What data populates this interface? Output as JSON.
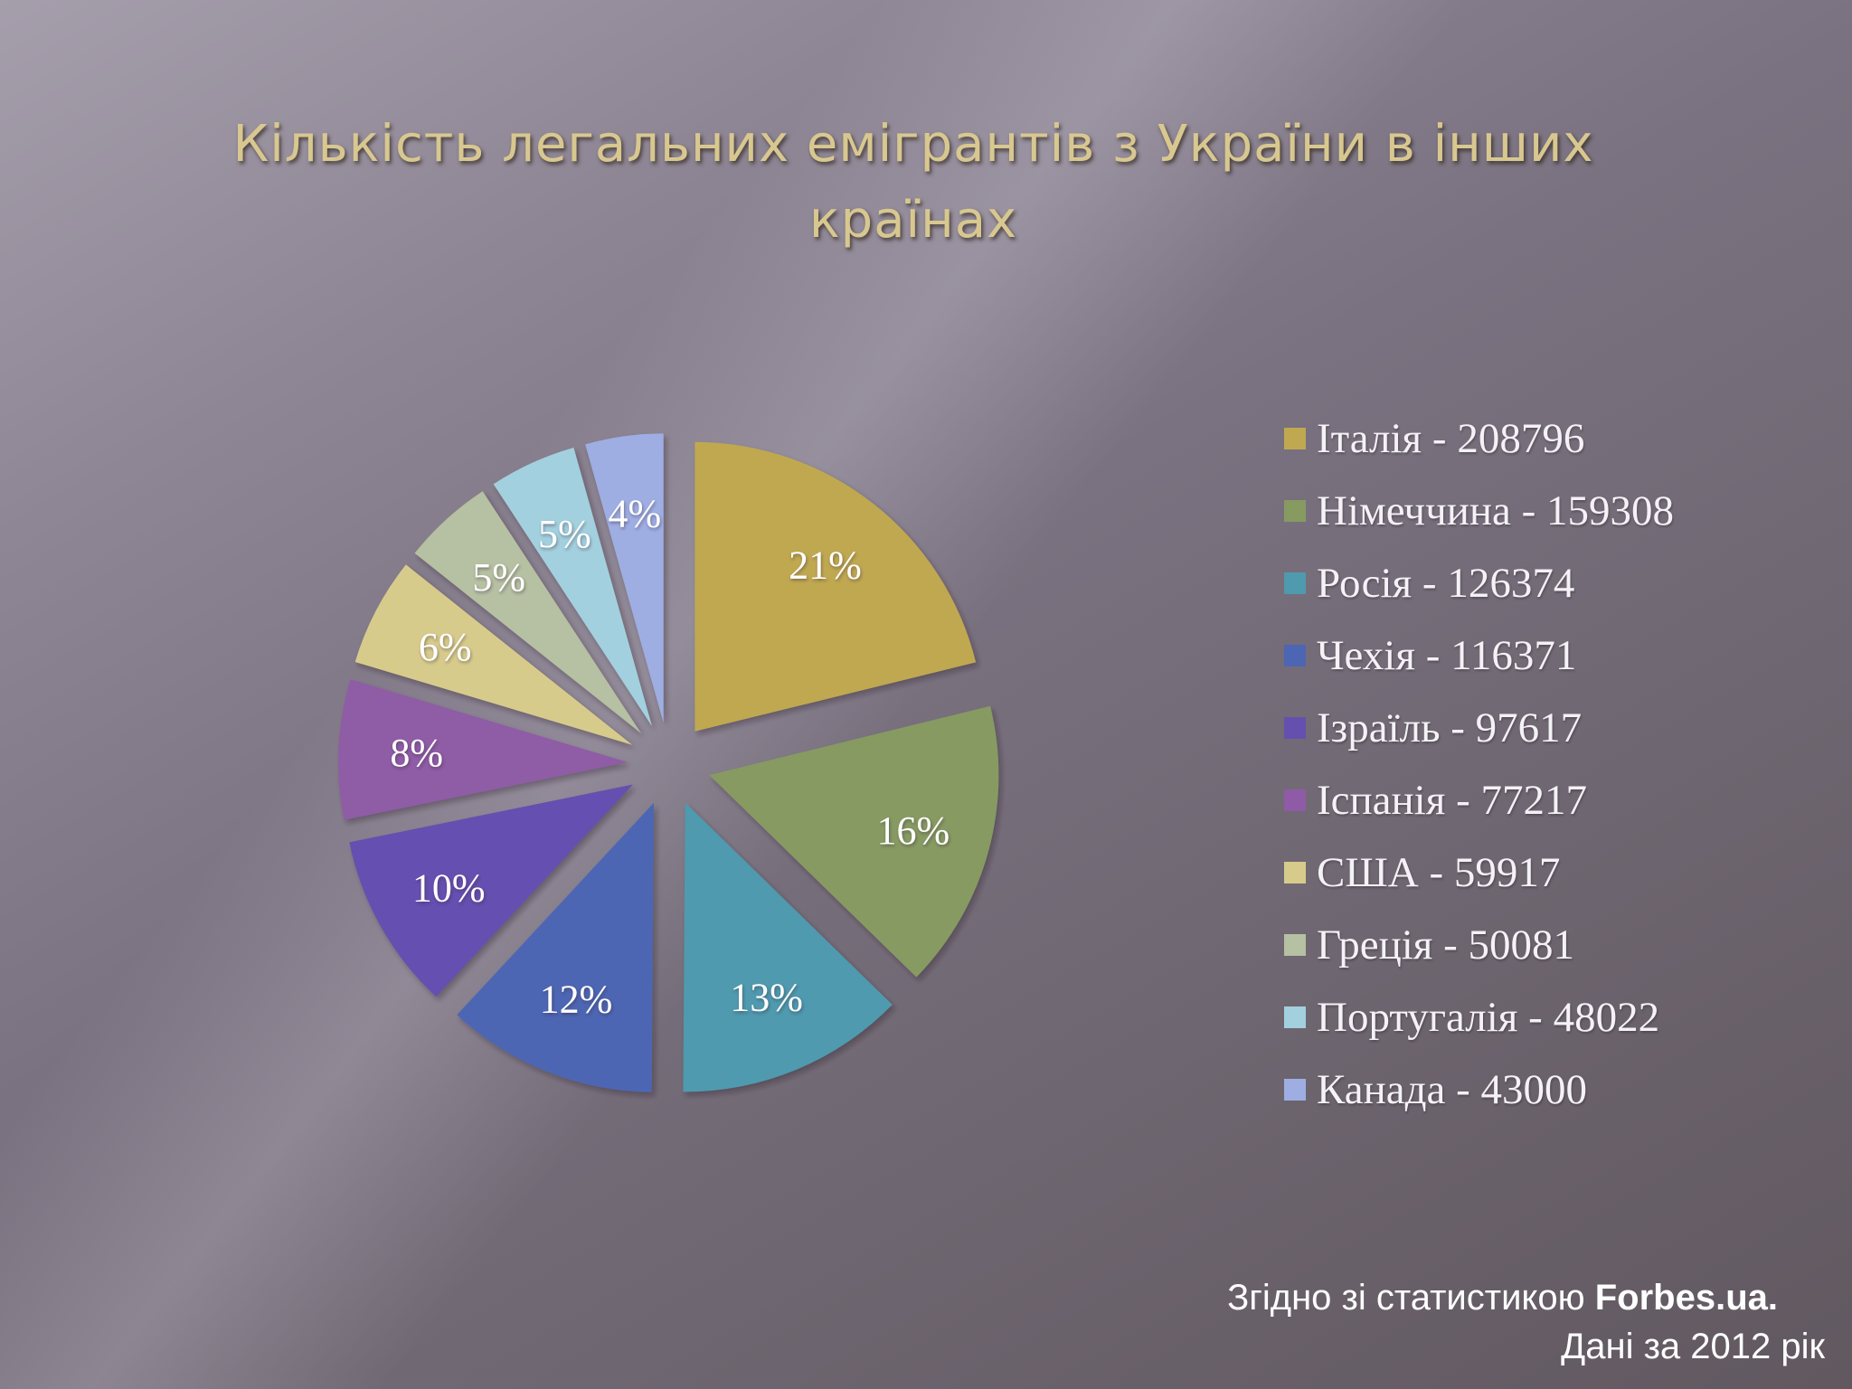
{
  "slide": {
    "title": "Кількість легальних емігрантів з України в інших країнах",
    "footnote": {
      "prefix": "Згідно зі статистикою ",
      "source": "Forbes.ua.",
      "line2": "Дані за 2012 рік"
    }
  },
  "chart_data": {
    "type": "pie",
    "title": "",
    "legend_position": "right",
    "slices": [
      {
        "legend": "Італія - 208796",
        "value": 208796,
        "percent_label": "21%",
        "color": "#c0a851"
      },
      {
        "legend": "Німеччина - 159308",
        "value": 159308,
        "percent_label": "16%",
        "color": "#879a62"
      },
      {
        "legend": "Росія - 126374",
        "value": 126374,
        "percent_label": "13%",
        "color": "#4f9aaf"
      },
      {
        "legend": "Чехія - 116371",
        "value": 116371,
        "percent_label": "12%",
        "color": "#4d66b3"
      },
      {
        "legend": "Ізраїль - 97617",
        "value": 97617,
        "percent_label": "10%",
        "color": "#6550b0"
      },
      {
        "legend": "Іспанія - 77217",
        "value": 77217,
        "percent_label": "8%",
        "color": "#8f5ba6"
      },
      {
        "legend": "США - 59917",
        "value": 59917,
        "percent_label": "6%",
        "color": "#d7cb8c"
      },
      {
        "legend": "Греція - 50081",
        "value": 50081,
        "percent_label": "5%",
        "color": "#b6c0a2"
      },
      {
        "legend": "Португалія - 48022",
        "value": 48022,
        "percent_label": "5%",
        "color": "#a3d0de"
      },
      {
        "legend": "Канада - 43000",
        "value": 43000,
        "percent_label": "4%",
        "color": "#9eaee3"
      }
    ]
  }
}
